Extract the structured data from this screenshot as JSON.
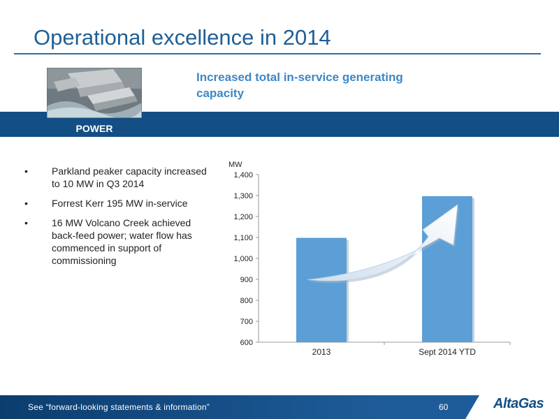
{
  "slide": {
    "title": "Operational excellence in 2014",
    "subtitle": "Increased total in-service generating capacity",
    "section_label": "POWER",
    "bullets": [
      "Parkland peaker capacity increased to 10 MW in Q3 2014",
      "Forrest Kerr 195 MW in-service",
      "16 MW Volcano Creek achieved back-feed power; water flow has commenced in support of commissioning"
    ],
    "footer_text": "See “forward-looking statements & information”",
    "page_number": "60",
    "logo_text": "AltaGas"
  },
  "colors": {
    "title": "#1f5f96",
    "band": "#134e84",
    "subtitle": "#3d87c6",
    "bar": "#5b9fd6",
    "arrow": "#d6e4f1"
  },
  "chart_data": {
    "type": "bar",
    "categories": [
      "2013",
      "Sept 2014 YTD"
    ],
    "values": [
      1098,
      1297
    ],
    "ylabel": "MW",
    "ylim": [
      600,
      1400
    ],
    "yticks": [
      600,
      700,
      800,
      900,
      1000,
      1100,
      1200,
      1300,
      1400
    ],
    "ytick_labels": [
      "600",
      "700",
      "800",
      "900",
      "1,000",
      "1,100",
      "1,200",
      "1,300",
      "1,400"
    ],
    "grid": false,
    "annotation": "upward-arrow-2013-to-2014"
  }
}
